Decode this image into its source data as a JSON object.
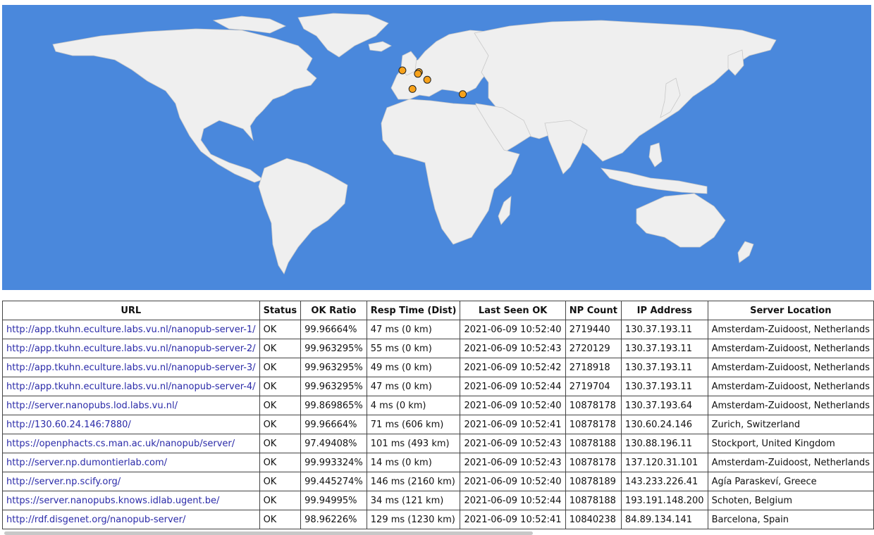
{
  "map": {
    "ocean_color": "#4a88dc",
    "land_color": "#efefef",
    "marker_color": "#f7a21b",
    "markers": [
      {
        "location": "Amsterdam-Zuidoost, Netherlands",
        "lat": 52.3,
        "lon": 4.95
      },
      {
        "location": "Zurich, Switzerland",
        "lat": 47.37,
        "lon": 8.54
      },
      {
        "location": "Stockport, United Kingdom",
        "lat": 53.41,
        "lon": -2.15
      },
      {
        "location": "Agía Paraskeví, Greece",
        "lat": 38.0,
        "lon": 23.8
      },
      {
        "location": "Schoten, Belgium",
        "lat": 51.25,
        "lon": 4.5
      },
      {
        "location": "Barcelona, Spain",
        "lat": 41.39,
        "lon": 2.17
      }
    ]
  },
  "table": {
    "headers": [
      "URL",
      "Status",
      "OK Ratio",
      "Resp Time (Dist)",
      "Last Seen OK",
      "NP Count",
      "IP Address",
      "Server Location"
    ],
    "rows": [
      {
        "url": "http://app.tkuhn.eculture.labs.vu.nl/nanopub-server-1/",
        "status": "OK",
        "ok_ratio": "99.96664%",
        "resp": "47 ms (0 km)",
        "last_seen": "2021-06-09 10:52:40",
        "np_count": "2719440",
        "ip": "130.37.193.11",
        "location": "Amsterdam-Zuidoost, Netherlands"
      },
      {
        "url": "http://app.tkuhn.eculture.labs.vu.nl/nanopub-server-2/",
        "status": "OK",
        "ok_ratio": "99.963295%",
        "resp": "55 ms (0 km)",
        "last_seen": "2021-06-09 10:52:43",
        "np_count": "2720129",
        "ip": "130.37.193.11",
        "location": "Amsterdam-Zuidoost, Netherlands"
      },
      {
        "url": "http://app.tkuhn.eculture.labs.vu.nl/nanopub-server-3/",
        "status": "OK",
        "ok_ratio": "99.963295%",
        "resp": "49 ms (0 km)",
        "last_seen": "2021-06-09 10:52:42",
        "np_count": "2718918",
        "ip": "130.37.193.11",
        "location": "Amsterdam-Zuidoost, Netherlands"
      },
      {
        "url": "http://app.tkuhn.eculture.labs.vu.nl/nanopub-server-4/",
        "status": "OK",
        "ok_ratio": "99.963295%",
        "resp": "47 ms (0 km)",
        "last_seen": "2021-06-09 10:52:44",
        "np_count": "2719704",
        "ip": "130.37.193.11",
        "location": "Amsterdam-Zuidoost, Netherlands"
      },
      {
        "url": "http://server.nanopubs.lod.labs.vu.nl/",
        "status": "OK",
        "ok_ratio": "99.869865%",
        "resp": "4 ms (0 km)",
        "last_seen": "2021-06-09 10:52:40",
        "np_count": "10878178",
        "ip": "130.37.193.64",
        "location": "Amsterdam-Zuidoost, Netherlands"
      },
      {
        "url": "http://130.60.24.146:7880/",
        "status": "OK",
        "ok_ratio": "99.96664%",
        "resp": "71 ms (606 km)",
        "last_seen": "2021-06-09 10:52:41",
        "np_count": "10878178",
        "ip": "130.60.24.146",
        "location": "Zurich, Switzerland"
      },
      {
        "url": "https://openphacts.cs.man.ac.uk/nanopub/server/",
        "status": "OK",
        "ok_ratio": "97.49408%",
        "resp": "101 ms (493 km)",
        "last_seen": "2021-06-09 10:52:43",
        "np_count": "10878188",
        "ip": "130.88.196.11",
        "location": "Stockport, United Kingdom"
      },
      {
        "url": "http://server.np.dumontierlab.com/",
        "status": "OK",
        "ok_ratio": "99.993324%",
        "resp": "14 ms (0 km)",
        "last_seen": "2021-06-09 10:52:43",
        "np_count": "10878178",
        "ip": "137.120.31.101",
        "location": "Amsterdam-Zuidoost, Netherlands"
      },
      {
        "url": "http://server.np.scify.org/",
        "status": "OK",
        "ok_ratio": "99.445274%",
        "resp": "146 ms (2160 km)",
        "last_seen": "2021-06-09 10:52:40",
        "np_count": "10878189",
        "ip": "143.233.226.41",
        "location": "Agía Paraskeví, Greece"
      },
      {
        "url": "https://server.nanopubs.knows.idlab.ugent.be/",
        "status": "OK",
        "ok_ratio": "99.94995%",
        "resp": "34 ms (121 km)",
        "last_seen": "2021-06-09 10:52:44",
        "np_count": "10878188",
        "ip": "193.191.148.200",
        "location": "Schoten, Belgium"
      },
      {
        "url": "http://rdf.disgenet.org/nanopub-server/",
        "status": "OK",
        "ok_ratio": "98.96226%",
        "resp": "129 ms (1230 km)",
        "last_seen": "2021-06-09 10:52:41",
        "np_count": "10840238",
        "ip": "84.89.134.141",
        "location": "Barcelona, Spain"
      }
    ]
  }
}
